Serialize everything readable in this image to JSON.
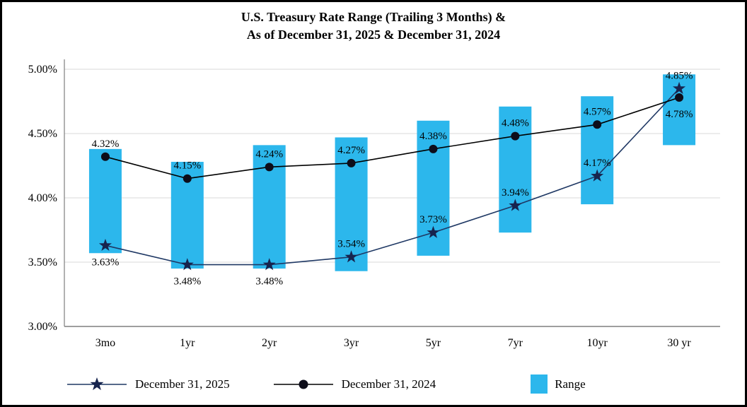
{
  "chart_data": {
    "type": "bar",
    "subtype": "range-bars-with-lines",
    "title_line1": "U.S. Treasury Rate Range (Trailing 3 Months) &",
    "title_line2": "As of December 31, 2025 & December 31, 2024",
    "categories": [
      "3mo",
      "1yr",
      "2yr",
      "3yr",
      "5yr",
      "7yr",
      "10yr",
      "30 yr"
    ],
    "y_axis": {
      "min": 3.0,
      "max": 5.0,
      "step": 0.5,
      "tick_labels": [
        "3.00%",
        "3.50%",
        "4.00%",
        "4.50%",
        "5.00%"
      ]
    },
    "grid": true,
    "colors": {
      "range_bar": "#2CB7EC",
      "line_2025": "#1F3864",
      "marker_2025": "#17244E",
      "line_2024": "#000000",
      "marker_2024": "#0D0D1A",
      "gridline": "#D9D9D9",
      "axis": "#7F7F7F"
    },
    "range_series": {
      "name": "Range",
      "low": [
        3.57,
        3.45,
        3.45,
        3.43,
        3.55,
        3.73,
        3.95,
        4.41
      ],
      "high": [
        4.38,
        4.28,
        4.41,
        4.47,
        4.6,
        4.71,
        4.79,
        4.96
      ]
    },
    "line_series": [
      {
        "name": "December 31, 2025",
        "marker": "star",
        "values": [
          3.63,
          3.48,
          3.48,
          3.54,
          3.73,
          3.94,
          4.17,
          4.85
        ],
        "labels": [
          "3.63%",
          "3.48%",
          "3.48%",
          "3.54%",
          "3.73%",
          "3.94%",
          "4.17%",
          "4.85%"
        ],
        "label_sides": [
          "below",
          "below",
          "below",
          "above",
          "above",
          "above",
          "above",
          "above"
        ]
      },
      {
        "name": "December 31, 2024",
        "marker": "circle",
        "values": [
          4.32,
          4.15,
          4.24,
          4.27,
          4.38,
          4.48,
          4.57,
          4.78
        ],
        "labels": [
          "4.32%",
          "4.15%",
          "4.24%",
          "4.27%",
          "4.38%",
          "4.48%",
          "4.57%",
          "4.78%"
        ],
        "label_sides": [
          "above",
          "above",
          "above",
          "above",
          "above",
          "above",
          "above",
          "below"
        ]
      }
    ],
    "legend": [
      {
        "label": "December 31, 2025",
        "type": "line-star"
      },
      {
        "label": "December 31, 2024",
        "type": "line-circle"
      },
      {
        "label": "Range",
        "type": "swatch"
      }
    ]
  }
}
